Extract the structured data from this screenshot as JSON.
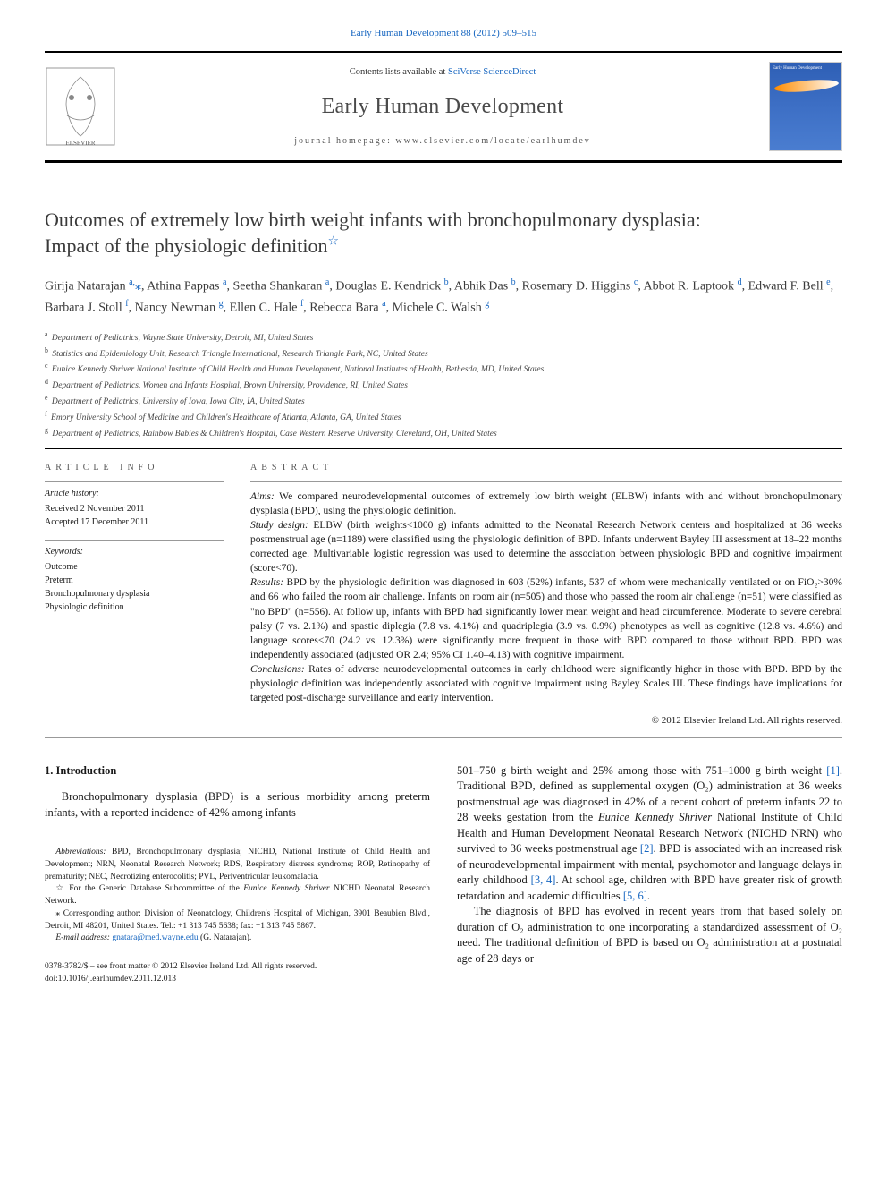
{
  "top_link": "Early Human Development 88 (2012) 509–515",
  "header": {
    "contents_prefix": "Contents lists available at ",
    "contents_link": "SciVerse ScienceDirect",
    "journal_name": "Early Human Development",
    "homepage": "journal homepage: www.elsevier.com/locate/earlhumdev",
    "cover_label": "Early Human Development"
  },
  "title": {
    "line1": "Outcomes of extremely low birth weight infants with bronchopulmonary dysplasia:",
    "line2": "Impact of the physiologic definition",
    "star": "☆"
  },
  "authors_html": "Girija Natarajan <sup>a,</sup><span class='corr'>⁎</span>, Athina Pappas <sup>a</sup>, Seetha Shankaran <sup>a</sup>, Douglas E. Kendrick <sup>b</sup>, Abhik Das <sup>b</sup>, Rosemary D. Higgins <sup>c</sup>, Abbot R. Laptook <sup>d</sup>, Edward F. Bell <sup>e</sup>, Barbara J. Stoll <sup>f</sup>, Nancy Newman <sup>g</sup>, Ellen C. Hale <sup>f</sup>, Rebecca Bara <sup>a</sup>, Michele C. Walsh <sup>g</sup>",
  "affiliations": [
    {
      "k": "a",
      "t": "Department of Pediatrics, Wayne State University, Detroit, MI, United States"
    },
    {
      "k": "b",
      "t": "Statistics and Epidemiology Unit, Research Triangle International, Research Triangle Park, NC, United States"
    },
    {
      "k": "c",
      "t": "Eunice Kennedy Shriver National Institute of Child Health and Human Development, National Institutes of Health, Bethesda, MD, United States"
    },
    {
      "k": "d",
      "t": "Department of Pediatrics, Women and Infants Hospital, Brown University, Providence, RI, United States"
    },
    {
      "k": "e",
      "t": "Department of Pediatrics, University of Iowa, Iowa City, IA, United States"
    },
    {
      "k": "f",
      "t": "Emory University School of Medicine and Children's Healthcare of Atlanta, Atlanta, GA, United States"
    },
    {
      "k": "g",
      "t": "Department of Pediatrics, Rainbow Babies & Children's Hospital, Case Western Reserve University, Cleveland, OH, United States"
    }
  ],
  "info": {
    "heading": "ARTICLE INFO",
    "history_label": "Article history:",
    "received": "Received 2 November 2011",
    "accepted": "Accepted 17 December 2011",
    "keywords_label": "Keywords:",
    "keywords": [
      "Outcome",
      "Preterm",
      "Bronchopulmonary dysplasia",
      "Physiologic definition"
    ]
  },
  "abstract": {
    "heading": "ABSTRACT",
    "aims_label": "Aims: ",
    "aims": "We compared neurodevelopmental outcomes of extremely low birth weight (ELBW) infants with and without bronchopulmonary dysplasia (BPD), using the physiologic definition.",
    "design_label": "Study design: ",
    "design": "ELBW (birth weights<1000 g) infants admitted to the Neonatal Research Network centers and hospitalized at 36 weeks postmenstrual age (n=1189) were classified using the physiologic definition of BPD. Infants underwent Bayley III assessment at 18–22 months corrected age. Multivariable logistic regression was used to determine the association between physiologic BPD and cognitive impairment (score<70).",
    "results_label": "Results: ",
    "results": "BPD by the physiologic definition was diagnosed in 603 (52%) infants, 537 of whom were mechanically ventilated or on FiO₂>30% and 66 who failed the room air challenge. Infants on room air (n=505) and those who passed the room air challenge (n=51) were classified as \"no BPD\" (n=556). At follow up, infants with BPD had significantly lower mean weight and head circumference. Moderate to severe cerebral palsy (7 vs. 2.1%) and spastic diplegia (7.8 vs. 4.1%) and quadriplegia (3.9 vs. 0.9%) phenotypes as well as cognitive (12.8 vs. 4.6%) and language scores<70 (24.2 vs. 12.3%) were significantly more frequent in those with BPD compared to those without BPD. BPD was independently associated (adjusted OR 2.4; 95% CI 1.40–4.13) with cognitive impairment.",
    "conclusions_label": "Conclusions: ",
    "conclusions": "Rates of adverse neurodevelopmental outcomes in early childhood were significantly higher in those with BPD. BPD by the physiologic definition was independently associated with cognitive impairment using Bayley Scales III. These findings have implications for targeted post-discharge surveillance and early intervention.",
    "copyright": "© 2012 Elsevier Ireland Ltd. All rights reserved."
  },
  "intro": {
    "heading": "1. Introduction",
    "p1": "Bronchopulmonary dysplasia (BPD) is a serious morbidity among preterm infants, with a reported incidence of 42% among infants",
    "p2a": "501–750 g birth weight and 25% among those with 751–1000 g birth weight ",
    "ref1": "[1]",
    "p2b": ". Traditional BPD, defined as supplemental oxygen (O₂) administration at 36 weeks postmenstrual age was diagnosed in 42% of a recent cohort of preterm infants 22 to 28 weeks gestation from the ",
    "eunice": "Eunice Kennedy Shriver",
    "p2c": " National Institute of Child Health and Human Development Neonatal Research Network (NICHD NRN) who survived to 36 weeks postmenstrual age ",
    "ref2": "[2]",
    "p2d": ". BPD is associated with an increased risk of neurodevelopmental impairment with mental, psychomotor and language delays in early childhood ",
    "ref34": "[3, 4]",
    "p2e": ". At school age, children with BPD have greater risk of growth retardation and academic difficulties ",
    "ref56": "[5, 6]",
    "p2f": ".",
    "p3": "The diagnosis of BPD has evolved in recent years from that based solely on duration of O₂ administration to one incorporating a standardized assessment of O₂ need. The traditional definition of BPD is based on O₂ administration at a postnatal age of 28 days or"
  },
  "footnotes": {
    "abbrev_label": "Abbreviations: ",
    "abbrev": "BPD, Bronchopulmonary dysplasia; NICHD, National Institute of Child Health and Development; NRN, Neonatal Research Network; RDS, Respiratory distress syndrome; ROP, Retinopathy of prematurity; NEC, Necrotizing enterocolitis; PVL, Periventricular leukomalacia.",
    "star": "☆ ",
    "star_text_a": "For the Generic Database Subcommittee of the ",
    "eunice": "Eunice Kennedy Shriver",
    "star_text_b": " NICHD Neonatal Research Network.",
    "corr": "⁎ ",
    "corr_text": "Corresponding author: Division of Neonatology, Children's Hospital of Michigan, 3901 Beaubien Blvd., Detroit, MI 48201, United States. Tel.: +1 313 745 5638; fax: +1 313 745 5867.",
    "email_label": "E-mail address: ",
    "email": "gnatara@med.wayne.edu",
    "email_suffix": " (G. Natarajan)."
  },
  "doi": {
    "line1": "0378-3782/$ – see front matter © 2012 Elsevier Ireland Ltd. All rights reserved.",
    "line2": "doi:10.1016/j.earlhumdev.2011.12.013"
  },
  "colors": {
    "link": "#1565c0",
    "text": "#1a1a1a",
    "heading": "#3a3a3a",
    "rule": "#000000",
    "light_rule": "#999999",
    "cover_bg": "#3d6fc5"
  }
}
